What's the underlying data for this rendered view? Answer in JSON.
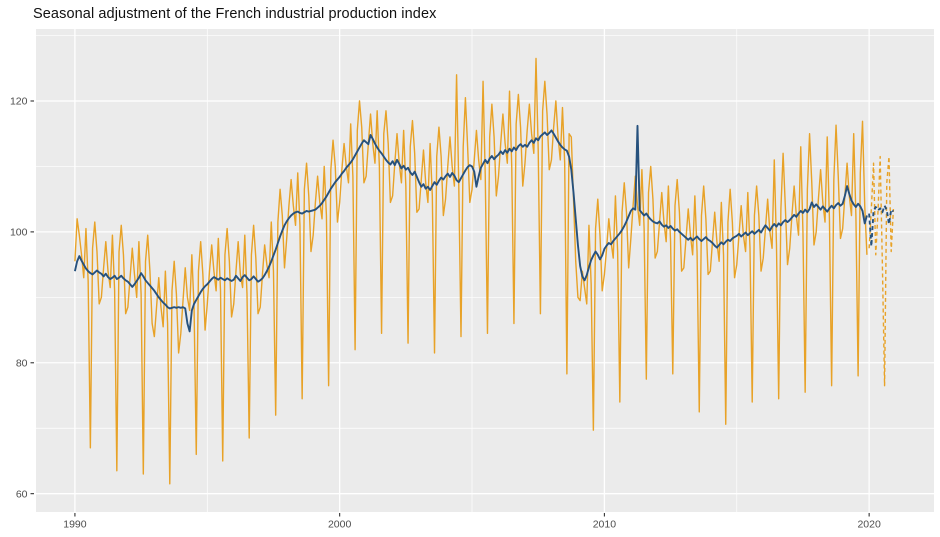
{
  "title": "Seasonal adjustment of the French industrial production index",
  "colors": {
    "raw_series": "#E8A227",
    "adjusted_series": "#26517D",
    "panel_background": "#EBEBEB",
    "grid_major": "#FFFFFF",
    "grid_minor": "#FFFFFF",
    "tick_label": "#4D4D4D",
    "tick_mark": "#333333",
    "title_text": "#111111"
  },
  "axes": {
    "x": {
      "major_ticks": [
        1990,
        2000,
        2010,
        2020
      ],
      "minor_ticks": [
        1995,
        2005,
        2015
      ],
      "tick_labels": [
        "1990",
        "2000",
        "2010",
        "2020"
      ]
    },
    "y": {
      "major_ticks": [
        60,
        80,
        100,
        120
      ],
      "minor_ticks": [
        70,
        90,
        110,
        130
      ],
      "tick_labels": [
        "60",
        "80",
        "100",
        "120"
      ]
    }
  },
  "chart_data": {
    "type": "line",
    "x_unit": "year",
    "frequency": "monthly",
    "x_range_shown": [
      1988.5,
      2022.4
    ],
    "y_range_shown": [
      57,
      131
    ],
    "grid": true,
    "legend": false,
    "title": "Seasonal adjustment of the French industrial production index",
    "xlabel": "",
    "ylabel": "",
    "series": [
      {
        "name": "raw-index-monthly",
        "style": "solid",
        "color": "#E8A227",
        "width": 1.4,
        "start": 1990.0,
        "values": [
          95.5,
          102,
          99.5,
          96.5,
          93,
          100.5,
          92.5,
          67,
          97.5,
          101.5,
          97,
          89,
          90,
          94.5,
          98.5,
          94,
          91.5,
          99.5,
          91,
          63.5,
          97,
          101,
          96.5,
          87.5,
          88.5,
          93,
          97.5,
          93.5,
          90,
          98.5,
          90.5,
          63,
          95.5,
          99.5,
          94,
          86,
          84,
          88.5,
          93,
          88.5,
          85.5,
          94,
          86,
          61.5,
          91,
          95.5,
          90.5,
          81.5,
          84.5,
          89.5,
          94.5,
          90,
          88,
          96.5,
          88.5,
          66,
          94,
          98.5,
          93.5,
          85,
          89,
          94,
          98,
          94,
          91,
          99,
          91,
          65,
          96.5,
          100.5,
          95.5,
          87,
          89,
          94,
          98.5,
          93.5,
          91.5,
          99.5,
          90.5,
          68.5,
          96.5,
          101,
          96,
          87.5,
          88.5,
          93.5,
          98,
          95,
          93,
          101.5,
          94,
          72,
          101.5,
          106.5,
          102.5,
          94.5,
          99,
          104,
          108,
          104,
          101,
          109,
          101,
          74.5,
          106.5,
          110.5,
          105.5,
          97,
          99.5,
          104.5,
          108.5,
          104.5,
          102,
          110,
          102.5,
          76.5,
          109.5,
          114,
          110,
          101.5,
          104.5,
          109.5,
          113.5,
          110,
          107.5,
          116.5,
          108.5,
          82,
          115.5,
          120,
          116,
          107.5,
          108.5,
          113.5,
          118,
          113.5,
          110.5,
          118.5,
          110,
          84.5,
          115,
          118.5,
          113.5,
          104.5,
          105.5,
          110.5,
          115,
          110.5,
          107.5,
          115.5,
          107,
          83,
          113,
          117,
          112,
          103,
          103.5,
          108,
          112.5,
          107.5,
          104.5,
          113.5,
          105.5,
          81.5,
          111.5,
          116,
          111.5,
          102.5,
          105,
          110,
          114.5,
          110,
          107,
          124,
          107,
          84,
          113,
          120.5,
          113,
          104.5,
          106.5,
          111,
          115.5,
          111,
          108,
          123,
          108.5,
          84.5,
          114.5,
          119.5,
          114.5,
          105.5,
          108.5,
          113.5,
          118,
          113.5,
          110.5,
          121.5,
          110,
          86,
          116.5,
          121,
          116,
          107,
          110.5,
          115.5,
          119.5,
          115,
          112,
          126.5,
          112.5,
          87.5,
          118.5,
          123,
          118,
          109.5,
          111,
          116,
          120,
          114.5,
          111,
          119,
          110.5,
          78.3,
          115,
          114.5,
          105,
          95.5,
          90,
          89.5,
          94,
          91.5,
          89,
          101,
          92,
          69.7,
          100.5,
          105,
          99.5,
          91,
          93.5,
          97.5,
          102,
          98.5,
          96,
          105.5,
          97,
          74,
          103,
          107.5,
          103,
          94.5,
          99,
          104,
          108.5,
          104,
          101,
          109.5,
          100.5,
          77.5,
          106,
          110,
          105,
          96,
          97,
          101.5,
          106,
          101.5,
          98.5,
          107,
          98.5,
          78.3,
          104,
          108,
          103,
          94,
          94.5,
          99,
          103.5,
          99.5,
          96.5,
          105.5,
          97,
          72.5,
          102.5,
          107,
          102,
          93.5,
          94,
          98.5,
          103,
          98.5,
          95.5,
          104.5,
          96.5,
          70.6,
          101.5,
          106.5,
          101.5,
          93,
          95,
          99.5,
          104,
          99.5,
          97,
          106,
          97.5,
          74,
          102.5,
          107,
          102.5,
          94,
          96,
          100.5,
          105,
          100,
          97.5,
          111,
          98,
          74.5,
          103.5,
          112,
          104,
          95,
          97.5,
          102.5,
          107,
          102.5,
          99.5,
          113,
          100,
          75.5,
          106.5,
          115,
          107.5,
          98,
          100,
          105,
          109.5,
          104.5,
          101.5,
          114.5,
          102,
          76.5,
          108,
          116.3,
          108.5,
          99,
          100.5,
          105.5,
          110.5,
          105.5,
          102.5,
          115,
          102.5,
          78,
          109,
          116.9,
          104,
          96.5
        ]
      },
      {
        "name": "seasonally-adjusted-monthly",
        "style": "solid",
        "color": "#26517D",
        "width": 1.9,
        "start": 1990.0,
        "values": [
          94,
          95.5,
          96.3,
          95.6,
          95,
          94.4,
          94,
          93.7,
          93.5,
          93.8,
          94.1,
          93.8,
          93.6,
          93.2,
          93.6,
          93.1,
          92.8,
          93,
          93.3,
          92.8,
          93,
          93.3,
          92.9,
          92.6,
          92.4,
          92,
          91.6,
          92,
          92.5,
          93,
          93.7,
          93.2,
          92.6,
          92.2,
          91.8,
          91.4,
          91,
          90.5,
          90,
          89.6,
          89.2,
          88.9,
          88.5,
          88.3,
          88.4,
          88.5,
          88.4,
          88.5,
          88.4,
          88.5,
          88.3,
          86,
          84.8,
          88,
          89,
          89.6,
          90.2,
          90.8,
          91.3,
          91.7,
          92,
          92.4,
          92.8,
          93.1,
          92.9,
          92.7,
          93,
          92.8,
          92.6,
          92.9,
          92.7,
          92.5,
          92.7,
          93.3,
          92.9,
          92.5,
          93.1,
          93.4,
          93,
          92.6,
          92.8,
          93.2,
          92.8,
          92.4,
          92.6,
          92.9,
          93.4,
          94,
          94.7,
          95.5,
          96.4,
          97.3,
          98.3,
          99.3,
          100.2,
          101,
          101.6,
          102.1,
          102.5,
          102.8,
          103,
          103.1,
          102.9,
          102.8,
          103,
          103.2,
          103.1,
          103.2,
          103.3,
          103.4,
          103.7,
          104,
          104.4,
          104.9,
          105.4,
          106,
          106.6,
          107.1,
          107.6,
          108,
          108.4,
          108.9,
          109.3,
          109.8,
          110.2,
          110.6,
          111.1,
          111.7,
          112.3,
          112.9,
          113.5,
          114,
          113.7,
          113.4,
          114.8,
          114.2,
          113.5,
          112.9,
          112.4,
          112,
          111.5,
          111,
          110.6,
          110.3,
          110.8,
          110.2,
          111,
          110.4,
          109.7,
          110.1,
          109.5,
          109.8,
          109.1,
          108.7,
          109.2,
          108.4,
          107.6,
          106.9,
          107.3,
          106.6,
          106.9,
          106.4,
          107,
          107.6,
          107.2,
          107.8,
          108.3,
          108,
          108.5,
          108.9,
          108.4,
          109,
          108.6,
          107.9,
          107.6,
          108.2,
          108.8,
          109.4,
          109.9,
          110.2,
          110,
          109.2,
          106.9,
          108.5,
          109.8,
          110.4,
          111,
          110.5,
          111.2,
          111.6,
          111.1,
          111.5,
          111.8,
          112.3,
          111.9,
          112.5,
          112.1,
          112.7,
          112.3,
          112.9,
          112.5,
          113.1,
          113.4,
          113,
          113.3,
          113,
          113.6,
          114,
          113.6,
          114.3,
          114,
          114.6,
          114.9,
          115.2,
          114.8,
          115.1,
          115.5,
          115,
          114.4,
          113.8,
          113.3,
          112.9,
          112.6,
          112.4,
          111.5,
          109.5,
          106,
          102,
          98,
          94.8,
          93.2,
          92.6,
          93.4,
          94.6,
          95.7,
          96.4,
          97,
          96.5,
          95.8,
          96.4,
          97.4,
          97.9,
          98.3,
          98.1,
          98.6,
          99,
          99.4,
          99.8,
          100.3,
          100.9,
          101.6,
          102.4,
          103.2,
          103.6,
          103.4,
          116.2,
          103.3,
          102.9,
          102.5,
          102.8,
          102.3,
          101.9,
          101.6,
          101.4,
          101.3,
          101.6,
          101.1,
          100.8,
          101,
          100.6,
          100.9,
          100.5,
          100.2,
          100.4,
          100,
          99.7,
          99.4,
          99.1,
          98.8,
          99.1,
          98.7,
          99,
          99.3,
          98.9,
          98.6,
          98.9,
          99.2,
          98.8,
          98.6,
          98.3,
          97.9,
          97.6,
          98,
          98.4,
          98.1,
          98.5,
          98.8,
          98.6,
          99,
          99.2,
          99.4,
          99.7,
          99.3,
          99.6,
          99.9,
          99.5,
          99.8,
          100.1,
          99.7,
          100,
          100.3,
          99.9,
          100.5,
          101,
          100.6,
          100.2,
          100.8,
          101.2,
          100.8,
          101.3,
          101,
          101.5,
          101.8,
          101.5,
          101.8,
          102.2,
          102.6,
          102.3,
          102.8,
          103.2,
          102.9,
          103.4,
          103,
          103.5,
          104.5,
          103.8,
          104.2,
          103.8,
          103.4,
          103.9,
          103.5,
          103.1,
          103.6,
          104,
          103.6,
          104.1,
          104.4,
          104,
          104.3,
          105.5,
          107,
          105.8,
          104.8,
          104.2,
          103.8,
          104.3,
          103.9,
          103.2,
          101.3,
          102.5
        ]
      },
      {
        "name": "raw-index-forecast",
        "style": "dashed",
        "color": "#E8A227",
        "width": 1.4,
        "start": 2020.0,
        "values": [
          97.5,
          103.5,
          110.5,
          96.5,
          103,
          111.5,
          95,
          76.5,
          107.5,
          111.5,
          97,
          103.5
        ]
      },
      {
        "name": "seasonally-adjusted-forecast",
        "style": "dashed",
        "color": "#26517D",
        "width": 1.9,
        "start": 2020.0,
        "values": [
          102.8,
          97.8,
          103.2,
          103.8,
          103.3,
          103.6,
          103,
          104,
          103.3,
          101.2,
          103.4,
          103.1
        ]
      }
    ]
  }
}
